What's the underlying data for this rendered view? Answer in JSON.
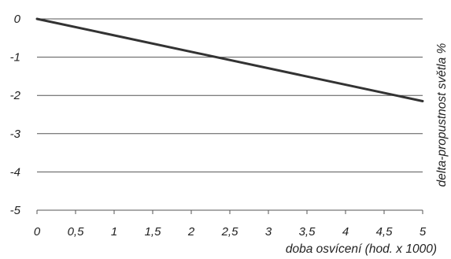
{
  "chart_data": {
    "type": "line",
    "title": "",
    "xlabel": "doba osvícení (hod. x 1000)",
    "ylabel": "delta-propustnost světla %",
    "xlim": [
      0,
      5
    ],
    "ylim": [
      -5,
      0
    ],
    "x_ticks": [
      "0",
      "0,5",
      "1",
      "1,5",
      "2",
      "2,5",
      "3",
      "3,5",
      "4",
      "4,5",
      "5"
    ],
    "y_ticks": [
      "0",
      "-1",
      "-2",
      "-3",
      "-4",
      "-5"
    ],
    "grid": "horizontal",
    "series": [
      {
        "x": [
          0,
          5
        ],
        "y": [
          0,
          -2.15
        ],
        "color": "#333333"
      }
    ]
  }
}
